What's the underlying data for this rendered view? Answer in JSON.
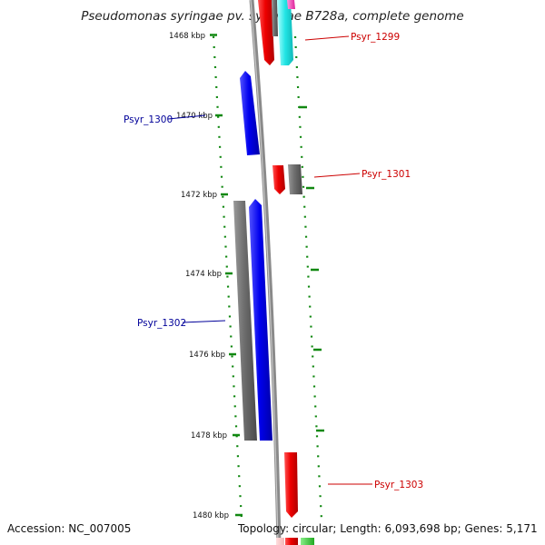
{
  "title": "Pseudomonas syringae pv. syringae B728a, complete genome",
  "footer": {
    "accession": "Accession: NC_007005",
    "topology": "Topology: circular; Length: 6,093,698 bp; Genes: 5,171"
  },
  "axis": {
    "ticks": [
      {
        "label": "1468 kbp"
      },
      {
        "label": "1470 kbp"
      },
      {
        "label": "1472 kbp"
      },
      {
        "label": "1474 kbp"
      },
      {
        "label": "1476 kbp"
      },
      {
        "label": "1478 kbp"
      },
      {
        "label": "1480 kbp"
      }
    ]
  },
  "genes": [
    {
      "label": "Psyr_1299",
      "color": "#cc0000"
    },
    {
      "label": "Psyr_1300",
      "color": "#000099"
    },
    {
      "label": "Psyr_1301",
      "color": "#cc0000"
    },
    {
      "label": "Psyr_1302",
      "color": "#000099"
    },
    {
      "label": "Psyr_1303",
      "color": "#cc0000"
    }
  ]
}
